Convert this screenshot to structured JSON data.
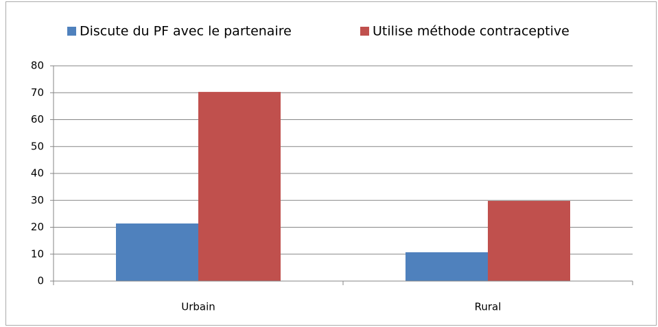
{
  "chart_data": {
    "type": "bar",
    "categories": [
      "Urbain",
      "Rural"
    ],
    "series": [
      {
        "name": "Discute du PF avec le partenaire",
        "color": "#4f81bd",
        "values": [
          21.4,
          10.7
        ]
      },
      {
        "name": "Utilise méthode contraceptive",
        "color": "#c0504d",
        "values": [
          70.3,
          29.8
        ]
      }
    ],
    "ylim": [
      0,
      80
    ],
    "yticks": [
      0,
      10,
      20,
      30,
      40,
      50,
      60,
      70,
      80
    ],
    "grid": true,
    "legend": "top"
  }
}
